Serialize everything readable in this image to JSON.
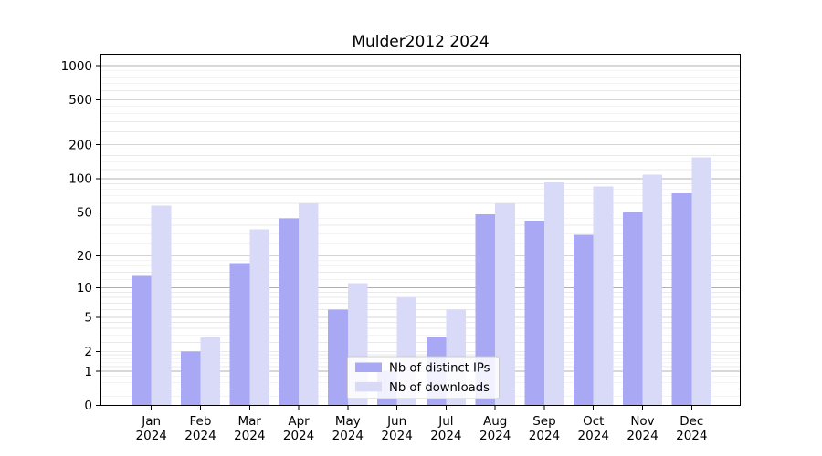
{
  "title": "Mulder2012 2024",
  "colors": {
    "distinct_ips": "#a8a8f5",
    "downloads": "#d9d9f8",
    "grid_decade": "#b0b0b0",
    "grid_labeled": "#d4d4d4",
    "grid_minor": "#e9e9e9",
    "axis": "#000000",
    "legend_border": "#cccccc"
  },
  "chart_data": {
    "type": "bar",
    "title": "Mulder2012 2024",
    "categories": [
      "Jan 2024",
      "Feb 2024",
      "Mar 2024",
      "Apr 2024",
      "May 2024",
      "Jun 2024",
      "Jul 2024",
      "Aug 2024",
      "Sep 2024",
      "Oct 2024",
      "Nov 2024",
      "Dec 2024"
    ],
    "series": [
      {
        "name": "Nb of distinct IPs",
        "color": "#a8a8f5",
        "values": [
          13,
          2,
          17,
          44,
          6,
          1,
          3,
          48,
          42,
          31,
          50,
          74
        ]
      },
      {
        "name": "Nb of downloads",
        "color": "#d9d9f8",
        "values": [
          57,
          3,
          35,
          60,
          11,
          8,
          6,
          60,
          92,
          85,
          108,
          155
        ]
      }
    ],
    "y_scale": "log1p",
    "y_ticks": [
      0,
      1,
      2,
      5,
      10,
      20,
      50,
      100,
      200,
      500,
      1000
    ],
    "ylim": [
      0,
      1265
    ],
    "xlabel": "",
    "ylabel": "",
    "grid": "both",
    "legend_position": "lower-center"
  }
}
